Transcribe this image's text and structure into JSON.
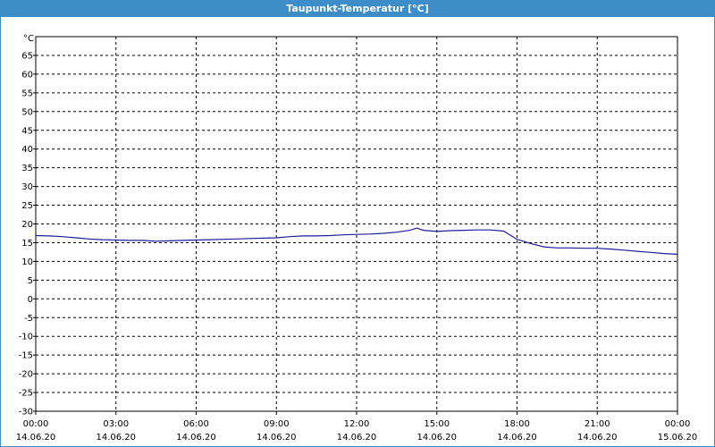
{
  "window": {
    "title": "Taupunkt-Temperatur [°C]"
  },
  "colors": {
    "titlebar": "#3c8dc8",
    "series": "#1c1c9c",
    "grid": "#000000",
    "background": "#ffffff"
  },
  "chart_data": {
    "type": "line",
    "title": "Taupunkt-Temperatur [°C]",
    "unit_label": "°C",
    "ylim": [
      -30,
      70
    ],
    "yticks": [
      65,
      60,
      55,
      50,
      45,
      40,
      35,
      30,
      25,
      20,
      15,
      10,
      5,
      0,
      -5,
      -10,
      -15,
      -20,
      -25,
      -30
    ],
    "xlim": [
      "14.06.20 00:00",
      "15.06.20 00:00"
    ],
    "xticks": [
      {
        "time": "00:00",
        "date": "14.06.20"
      },
      {
        "time": "03:00",
        "date": "14.06.20"
      },
      {
        "time": "06:00",
        "date": "14.06.20"
      },
      {
        "time": "09:00",
        "date": "14.06.20"
      },
      {
        "time": "12:00",
        "date": "14.06.20"
      },
      {
        "time": "15:00",
        "date": "14.06.20"
      },
      {
        "time": "18:00",
        "date": "14.06.20"
      },
      {
        "time": "21:00",
        "date": "14.06.20"
      },
      {
        "time": "00:00",
        "date": "15.06.20"
      }
    ],
    "grid": true,
    "series": [
      {
        "x": [
          "14.06.20 00:00",
          "14.06.20 00:30",
          "14.06.20 01:00",
          "14.06.20 01:30",
          "14.06.20 02:00",
          "14.06.20 02:30",
          "14.06.20 03:00",
          "14.06.20 03:30",
          "14.06.20 04:00",
          "14.06.20 04:30",
          "14.06.20 05:00",
          "14.06.20 05:30",
          "14.06.20 06:00",
          "14.06.20 06:30",
          "14.06.20 07:00",
          "14.06.20 07:30",
          "14.06.20 08:00",
          "14.06.20 08:30",
          "14.06.20 09:00",
          "14.06.20 09:30",
          "14.06.20 10:00",
          "14.06.20 10:30",
          "14.06.20 11:00",
          "14.06.20 11:30",
          "14.06.20 12:00",
          "14.06.20 12:30",
          "14.06.20 13:00",
          "14.06.20 13:30",
          "14.06.20 14:00",
          "14.06.20 14:15",
          "14.06.20 14:30",
          "14.06.20 15:00",
          "14.06.20 15:30",
          "14.06.20 16:00",
          "14.06.20 16:30",
          "14.06.20 17:00",
          "14.06.20 17:30",
          "14.06.20 18:00",
          "14.06.20 18:30",
          "14.06.20 19:00",
          "14.06.20 19:30",
          "14.06.20 20:00",
          "14.06.20 20:30",
          "14.06.20 21:00",
          "14.06.20 21:30",
          "14.06.20 22:00",
          "14.06.20 22:30",
          "14.06.20 23:00",
          "14.06.20 23:30",
          "15.06.20 00:00"
        ],
        "values": [
          16.9,
          16.8,
          16.6,
          16.3,
          16.0,
          15.8,
          15.7,
          15.6,
          15.6,
          15.4,
          15.5,
          15.6,
          15.7,
          15.8,
          15.9,
          16.0,
          16.1,
          16.2,
          16.3,
          16.6,
          16.8,
          16.8,
          16.9,
          17.1,
          17.2,
          17.3,
          17.5,
          17.8,
          18.3,
          18.9,
          18.3,
          18.0,
          18.2,
          18.3,
          18.4,
          18.4,
          18.1,
          15.9,
          14.8,
          13.9,
          13.6,
          13.6,
          13.5,
          13.5,
          13.3,
          13.0,
          12.7,
          12.4,
          12.1,
          11.9
        ]
      }
    ]
  }
}
